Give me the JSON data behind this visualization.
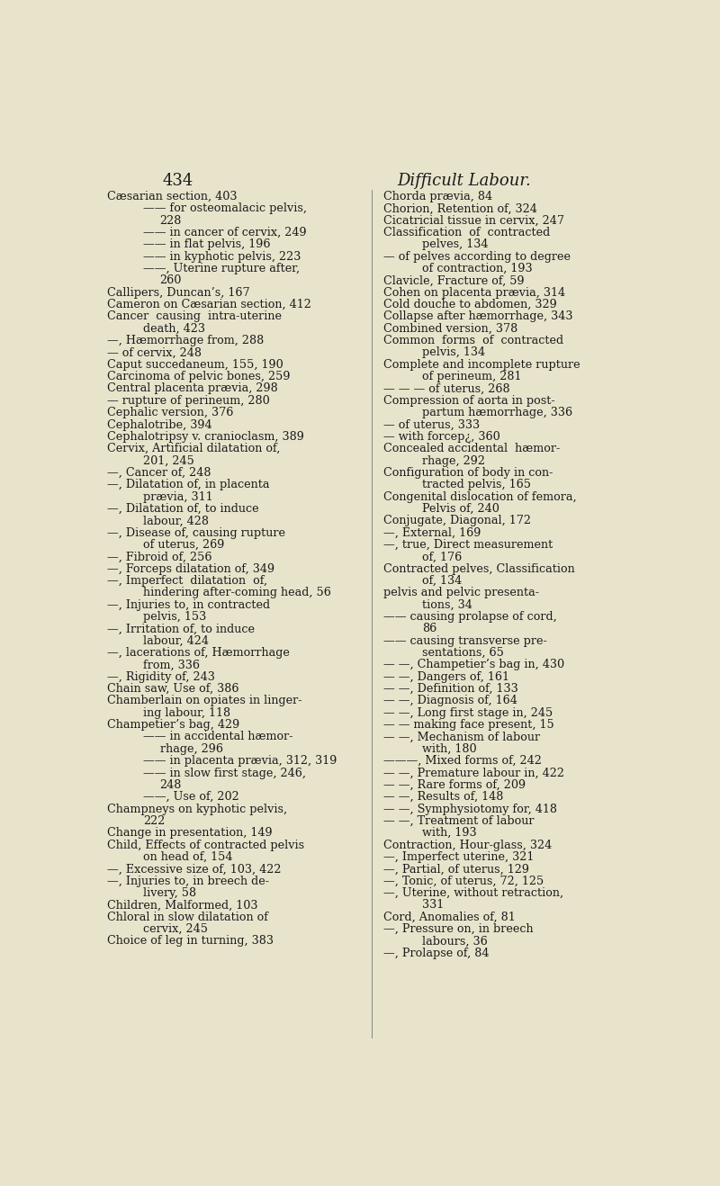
{
  "bg_color": "#e8e4cc",
  "text_color": "#1a1a1a",
  "page_number": "434",
  "page_title": "Difficult Labour.",
  "font_size": 9.2,
  "title_font_size": 13,
  "left_column": [
    {
      "text": "Cæsarian section, 403",
      "indent": 0
    },
    {
      "text": "—— for osteomalacic pelvis,",
      "indent": 1
    },
    {
      "text": "228",
      "indent": 2
    },
    {
      "text": "—— in cancer of cervix, 249",
      "indent": 1
    },
    {
      "text": "—— in flat pelvis, 196",
      "indent": 1
    },
    {
      "text": "—— in kyphotic pelvis, 223",
      "indent": 1
    },
    {
      "text": "——, Uterine rupture after,",
      "indent": 1
    },
    {
      "text": "260",
      "indent": 2
    },
    {
      "text": "Callipers, Duncan’s, 167",
      "indent": 0
    },
    {
      "text": "Cameron on Cæsarian section, 412",
      "indent": 0
    },
    {
      "text": "Cancer  causing  intra-uterine",
      "indent": 0
    },
    {
      "text": "death, 423",
      "indent": 1
    },
    {
      "text": "—, Hæmorrhage from, 288",
      "indent": 0
    },
    {
      "text": "— of cervix, 248",
      "indent": 0
    },
    {
      "text": "Caput succedaneum, 155, 190",
      "indent": 0
    },
    {
      "text": "Carcinoma of pelvic bones, 259",
      "indent": 0
    },
    {
      "text": "Central placenta prævia, 298",
      "indent": 0
    },
    {
      "text": "— rupture of perineum, 280",
      "indent": 0
    },
    {
      "text": "Cephalic version, 376",
      "indent": 0
    },
    {
      "text": "Cephalotribe, 394",
      "indent": 0
    },
    {
      "text": "Cephalotripsy v. cranioclasm, 389",
      "indent": 0
    },
    {
      "text": "Cervix, Artificial dilatation of,",
      "indent": 0
    },
    {
      "text": "201, 245",
      "indent": 1
    },
    {
      "text": "—, Cancer of, 248",
      "indent": 0
    },
    {
      "text": "—, Dilatation of, in placenta",
      "indent": 0
    },
    {
      "text": "prævia, 311",
      "indent": 1
    },
    {
      "text": "—, Dilatation of, to induce",
      "indent": 0
    },
    {
      "text": "labour, 428",
      "indent": 1
    },
    {
      "text": "—, Disease of, causing rupture",
      "indent": 0
    },
    {
      "text": "of uterus, 269",
      "indent": 1
    },
    {
      "text": "—, Fibroid of, 256",
      "indent": 0
    },
    {
      "text": "—, Forceps dilatation of, 349",
      "indent": 0
    },
    {
      "text": "—, Imperfect  dilatation  of,",
      "indent": 0
    },
    {
      "text": "hindering after-coming head, 56",
      "indent": 1
    },
    {
      "text": "—, Injuries to, in contracted",
      "indent": 0
    },
    {
      "text": "pelvis, 153",
      "indent": 1
    },
    {
      "text": "—, Irritation of, to induce",
      "indent": 0
    },
    {
      "text": "labour, 424",
      "indent": 1
    },
    {
      "text": "—, lacerations of, Hæmorrhage",
      "indent": 0
    },
    {
      "text": "from, 336",
      "indent": 1
    },
    {
      "text": "—, Rigidity of, 243",
      "indent": 0
    },
    {
      "text": "Chain saw, Use of, 386",
      "indent": 0
    },
    {
      "text": "Chamberlain on opiates in linger-",
      "indent": 0
    },
    {
      "text": "ing labour, 118",
      "indent": 1
    },
    {
      "text": "Champetier’s bag, 429",
      "indent": 0
    },
    {
      "text": "—— in accidental hæmor-",
      "indent": 1
    },
    {
      "text": "rhage, 296",
      "indent": 2
    },
    {
      "text": "—— in placenta prævia, 312, 319",
      "indent": 1
    },
    {
      "text": "—— in slow first stage, 246,",
      "indent": 1
    },
    {
      "text": "248",
      "indent": 2
    },
    {
      "text": "——, Use of, 202",
      "indent": 1
    },
    {
      "text": "Champneys on kyphotic pelvis,",
      "indent": 0
    },
    {
      "text": "222",
      "indent": 1
    },
    {
      "text": "Change in presentation, 149",
      "indent": 0
    },
    {
      "text": "Child, Effects of contracted pelvis",
      "indent": 0
    },
    {
      "text": "on head of, 154",
      "indent": 1
    },
    {
      "text": "—, Excessive size of, 103, 422",
      "indent": 0
    },
    {
      "text": "—, Injuries to, in breech de-",
      "indent": 0
    },
    {
      "text": "livery, 58",
      "indent": 1
    },
    {
      "text": "Children, Malformed, 103",
      "indent": 0
    },
    {
      "text": "Chloral in slow dilatation of",
      "indent": 0
    },
    {
      "text": "cervix, 245",
      "indent": 1
    },
    {
      "text": "Choice of leg in turning, 383",
      "indent": 0
    }
  ],
  "right_column": [
    {
      "text": "Chorda prævia, 84",
      "indent": 0
    },
    {
      "text": "Chorion, Retention of, 324",
      "indent": 0
    },
    {
      "text": "Cicatricial tissue in cervix, 247",
      "indent": 0
    },
    {
      "text": "Classification  of  contracted",
      "indent": 0
    },
    {
      "text": "pelves, 134",
      "indent": 1
    },
    {
      "text": "— of pelves according to degree",
      "indent": 0
    },
    {
      "text": "of contraction, 193",
      "indent": 1
    },
    {
      "text": "Clavicle, Fracture of, 59",
      "indent": 0
    },
    {
      "text": "Cohen on placenta prævia, 314",
      "indent": 0
    },
    {
      "text": "Cold douche to abdomen, 329",
      "indent": 0
    },
    {
      "text": "Collapse after hæmorrhage, 343",
      "indent": 0
    },
    {
      "text": "Combined version, 378",
      "indent": 0
    },
    {
      "text": "Common  forms  of  contracted",
      "indent": 0
    },
    {
      "text": "pelvis, 134",
      "indent": 1
    },
    {
      "text": "Complete and incomplete rupture",
      "indent": 0
    },
    {
      "text": "of perineum, 281",
      "indent": 1
    },
    {
      "text": "— — — of uterus, 268",
      "indent": 0
    },
    {
      "text": "Compression of aorta in post-",
      "indent": 0
    },
    {
      "text": "partum hæmorrhage, 336",
      "indent": 1
    },
    {
      "text": "— of uterus, 333",
      "indent": 0
    },
    {
      "text": "— with forcep¿, 360",
      "indent": 0
    },
    {
      "text": "Concealed accidental  hæmor-",
      "indent": 0
    },
    {
      "text": "rhage, 292",
      "indent": 1
    },
    {
      "text": "Configuration of body in con-",
      "indent": 0
    },
    {
      "text": "tracted pelvis, 165",
      "indent": 1
    },
    {
      "text": "Congenital dislocation of femora,",
      "indent": 0
    },
    {
      "text": "Pelvis of, 240",
      "indent": 1
    },
    {
      "text": "Conjugate, Diagonal, 172",
      "indent": 0
    },
    {
      "text": "—, External, 169",
      "indent": 0
    },
    {
      "text": "—, true, Direct measurement",
      "indent": 0
    },
    {
      "text": "of, 176",
      "indent": 1
    },
    {
      "text": "Contracted pelves, Classification",
      "indent": 0
    },
    {
      "text": "of, 134",
      "indent": 1
    },
    {
      "text": "pelvis and pelvic presenta-",
      "indent": 0
    },
    {
      "text": "tions, 34",
      "indent": 1
    },
    {
      "text": "—— causing prolapse of cord,",
      "indent": 0
    },
    {
      "text": "86",
      "indent": 1
    },
    {
      "text": "—— causing transverse pre-",
      "indent": 0
    },
    {
      "text": "sentations, 65",
      "indent": 1
    },
    {
      "text": "— —, Champetier’s bag in, 430",
      "indent": 0
    },
    {
      "text": "— —, Dangers of, 161",
      "indent": 0
    },
    {
      "text": "— —, Definition of, 133",
      "indent": 0
    },
    {
      "text": "— —, Diagnosis of, 164",
      "indent": 0
    },
    {
      "text": "— —, Long first stage in, 245",
      "indent": 0
    },
    {
      "text": "— — making face present, 15",
      "indent": 0
    },
    {
      "text": "— —, Mechanism of labour",
      "indent": 0
    },
    {
      "text": "with, 180",
      "indent": 1
    },
    {
      "text": "———, Mixed forms of, 242",
      "indent": 0
    },
    {
      "text": "— —, Premature labour in, 422",
      "indent": 0
    },
    {
      "text": "— —, Rare forms of, 209",
      "indent": 0
    },
    {
      "text": "— —, Results of, 148",
      "indent": 0
    },
    {
      "text": "— —, Symphysiotomy for, 418",
      "indent": 0
    },
    {
      "text": "— —, Treatment of labour",
      "indent": 0
    },
    {
      "text": "with, 193",
      "indent": 1
    },
    {
      "text": "Contraction, Hour-glass, 324",
      "indent": 0
    },
    {
      "text": "—, Imperfect uterine, 321",
      "indent": 0
    },
    {
      "text": "—, Partial, of uterus, 129",
      "indent": 0
    },
    {
      "text": "—, Tonic, of uterus, 72, 125",
      "indent": 0
    },
    {
      "text": "—, Uterine, without retraction,",
      "indent": 0
    },
    {
      "text": "331",
      "indent": 1
    },
    {
      "text": "Cord, Anomalies of, 81",
      "indent": 0
    },
    {
      "text": "—, Pressure on, in breech",
      "indent": 0
    },
    {
      "text": "labours, 36",
      "indent": 1
    },
    {
      "text": "—, Prolapse of, 84",
      "indent": 0
    }
  ]
}
